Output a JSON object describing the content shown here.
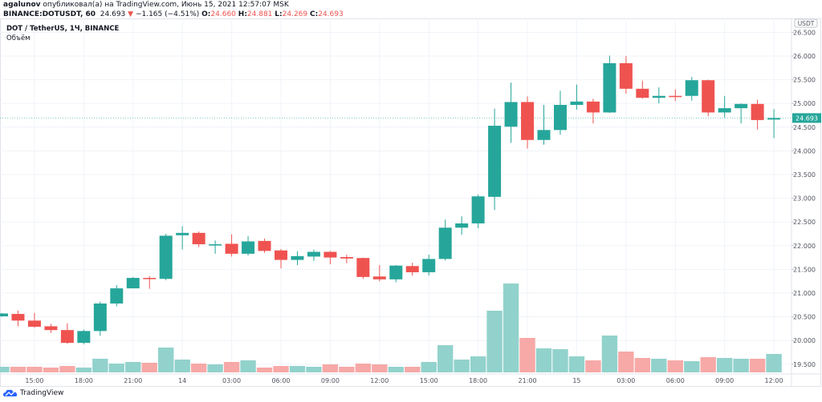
{
  "header": {
    "author": "agalunov",
    "published_text": "опубликовал(а) на TradingView.com, Июнь 15, 2021 12:57:07 MSK",
    "symbol": "BINANCE:DOTUSDT, 60",
    "last": "24.693",
    "change": "−1.165 (−4.51%)",
    "o_label": "O:",
    "o": "24.660",
    "h_label": "H:",
    "h": "24.881",
    "l_label": "L:",
    "l": "24.269",
    "c_label": "C:",
    "c": "24.693"
  },
  "legend": {
    "title": "DOT / TetherUS, 1Ч, BINANCE",
    "volume_label": "Объём"
  },
  "footer": {
    "logo_text": "TradingView"
  },
  "colors": {
    "up": "#26a69a",
    "down": "#ef5350",
    "up_volume": "#92d2cc",
    "down_volume": "#f7a9a7",
    "grid": "#f0f3fa"
  },
  "chart_data": {
    "type": "candlestick",
    "currency_label": "USDT",
    "last_price_label": "24.693",
    "ylim": [
      19.35,
      26.75
    ],
    "y_ticks": [
      "26.500",
      "26.000",
      "25.500",
      "25.000",
      "24.500",
      "24.000",
      "23.500",
      "23.000",
      "22.500",
      "22.000",
      "21.500",
      "21.000",
      "20.500",
      "20.000",
      "19.500"
    ],
    "x_ticks": [
      {
        "label": "15:00",
        "index": 2
      },
      {
        "label": "18:00",
        "index": 5
      },
      {
        "label": "21:00",
        "index": 8
      },
      {
        "label": "14",
        "index": 11
      },
      {
        "label": "03:00",
        "index": 14
      },
      {
        "label": "06:00",
        "index": 17
      },
      {
        "label": "09:00",
        "index": 20
      },
      {
        "label": "12:00",
        "index": 23
      },
      {
        "label": "15:00",
        "index": 26
      },
      {
        "label": "18:00",
        "index": 29
      },
      {
        "label": "21:00",
        "index": 32
      },
      {
        "label": "15",
        "index": 35
      },
      {
        "label": "03:00",
        "index": 38
      },
      {
        "label": "06:00",
        "index": 41
      },
      {
        "label": "09:00",
        "index": 44
      },
      {
        "label": "12:00",
        "index": 47
      }
    ],
    "grid": true,
    "candles": [
      [
        20.51,
        20.58,
        20.5,
        20.57
      ],
      [
        20.56,
        20.63,
        20.3,
        20.42
      ],
      [
        20.42,
        20.58,
        20.27,
        20.29
      ],
      [
        20.3,
        20.35,
        20.16,
        20.22
      ],
      [
        20.22,
        20.36,
        19.93,
        19.95
      ],
      [
        19.95,
        20.23,
        19.92,
        20.2
      ],
      [
        20.2,
        20.82,
        20.1,
        20.78
      ],
      [
        20.78,
        21.17,
        20.72,
        21.1
      ],
      [
        21.1,
        21.34,
        21.1,
        21.32
      ],
      [
        21.32,
        21.36,
        21.09,
        21.3
      ],
      [
        21.3,
        22.25,
        21.27,
        22.21
      ],
      [
        22.22,
        22.41,
        21.92,
        22.27
      ],
      [
        22.27,
        22.3,
        21.97,
        22.03
      ],
      [
        22.03,
        22.11,
        21.83,
        22.03
      ],
      [
        22.04,
        22.24,
        21.77,
        21.83
      ],
      [
        21.83,
        22.2,
        21.79,
        22.09
      ],
      [
        22.1,
        22.15,
        21.85,
        21.89
      ],
      [
        21.9,
        21.93,
        21.52,
        21.7
      ],
      [
        21.7,
        21.88,
        21.59,
        21.78
      ],
      [
        21.77,
        21.92,
        21.68,
        21.87
      ],
      [
        21.87,
        21.89,
        21.61,
        21.75
      ],
      [
        21.76,
        21.81,
        21.63,
        21.73
      ],
      [
        21.74,
        21.75,
        21.3,
        21.34
      ],
      [
        21.35,
        21.59,
        21.25,
        21.29
      ],
      [
        21.29,
        21.59,
        21.23,
        21.58
      ],
      [
        21.57,
        21.64,
        21.37,
        21.44
      ],
      [
        21.44,
        21.81,
        21.37,
        21.72
      ],
      [
        21.72,
        22.55,
        21.69,
        22.38
      ],
      [
        22.38,
        22.62,
        22.23,
        22.47
      ],
      [
        22.47,
        23.08,
        22.37,
        23.04
      ],
      [
        23.03,
        24.89,
        22.75,
        24.53
      ],
      [
        24.51,
        25.44,
        24.17,
        25.03
      ],
      [
        25.03,
        25.15,
        24.05,
        24.23
      ],
      [
        24.23,
        24.97,
        24.13,
        24.44
      ],
      [
        24.44,
        25.27,
        24.34,
        24.97
      ],
      [
        24.97,
        25.4,
        24.87,
        25.04
      ],
      [
        25.04,
        25.1,
        24.58,
        24.81
      ],
      [
        24.81,
        26.01,
        24.8,
        25.85
      ],
      [
        25.85,
        26.0,
        25.21,
        25.31
      ],
      [
        25.31,
        25.48,
        25.1,
        25.12
      ],
      [
        25.12,
        25.34,
        25.0,
        25.16
      ],
      [
        25.16,
        25.3,
        25.05,
        25.15
      ],
      [
        25.16,
        25.56,
        25.06,
        25.49
      ],
      [
        25.49,
        25.5,
        24.73,
        24.81
      ],
      [
        24.81,
        25.16,
        24.7,
        24.9
      ],
      [
        24.9,
        25.0,
        24.58,
        24.99
      ],
      [
        24.99,
        25.08,
        24.45,
        24.65
      ],
      [
        24.66,
        24.881,
        24.269,
        24.693
      ]
    ],
    "volume_relative": [
      7,
      7,
      7,
      6,
      8,
      6,
      17,
      11,
      13,
      12,
      31,
      16,
      11,
      10,
      13,
      15,
      6,
      8,
      8,
      7,
      10,
      7,
      11,
      10,
      7,
      7,
      13,
      34,
      16,
      20,
      77,
      111,
      43,
      30,
      29,
      20,
      15,
      46,
      26,
      18,
      17,
      15,
      14,
      19,
      18,
      17,
      17,
      23
    ]
  }
}
